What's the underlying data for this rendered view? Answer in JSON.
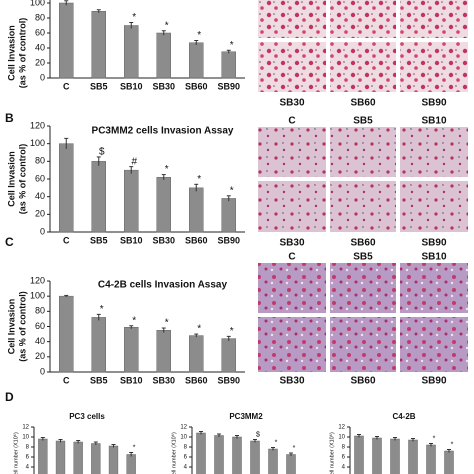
{
  "chart_data": [
    {
      "type": "bar",
      "categories": [
        "C",
        "SB5",
        "SB10",
        "SB30",
        "SB60",
        "SB90"
      ],
      "values": [
        100,
        89,
        70,
        60,
        47,
        35
      ],
      "errors": [
        3,
        2,
        4,
        3,
        3,
        2
      ],
      "bar_annotations": [
        null,
        null,
        "*",
        "*",
        "*",
        "*"
      ],
      "color": "#8c8c8c",
      "ylim": [
        0,
        120
      ],
      "yticks": [
        0,
        20,
        40,
        60,
        80,
        100
      ],
      "ylabel": [
        "Cell Invasion",
        "(as % of control)"
      ]
    },
    {
      "type": "bar",
      "title": "PC3MM2 cells Invasion Assay",
      "categories": [
        "C",
        "SB5",
        "SB10",
        "SB30",
        "SB60",
        "SB90"
      ],
      "values": [
        100,
        80,
        70,
        62,
        50,
        38
      ],
      "errors": [
        6,
        5,
        4,
        3,
        4,
        3
      ],
      "bar_annotations": [
        null,
        "$",
        "#",
        "*",
        "*",
        "*"
      ],
      "color": "#8c8c8c",
      "ylim": [
        0,
        120
      ],
      "yticks": [
        0,
        20,
        40,
        60,
        80,
        100,
        120
      ],
      "ylabel": [
        "Cell Invasion",
        "(as % of control)"
      ]
    },
    {
      "type": "bar",
      "title": "C4-2B cells Invasion Assay",
      "categories": [
        "C",
        "SB5",
        "SB10",
        "SB30",
        "SB60",
        "SB90"
      ],
      "values": [
        100,
        72,
        59,
        55,
        48,
        44
      ],
      "errors": [
        1,
        4,
        2,
        3,
        2,
        3
      ],
      "bar_annotations": [
        null,
        "*",
        "*",
        "*",
        "*",
        "*"
      ],
      "color": "#8c8c8c",
      "ylim": [
        0,
        120
      ],
      "yticks": [
        0,
        20,
        40,
        60,
        80,
        100,
        120
      ],
      "ylabel": [
        "Cell Invasion",
        "(as % of control)"
      ]
    },
    {
      "type": "bar",
      "title": "PC3 cells",
      "values": [
        9.6,
        9.2,
        9.0,
        8.7,
        8.2,
        6.5
      ],
      "errors": [
        0.3,
        0.3,
        0.3,
        0.3,
        0.3,
        0.4
      ],
      "bar_annotations": [
        null,
        null,
        null,
        null,
        null,
        "*"
      ],
      "color": "#8c8c8c",
      "ylim": [
        0,
        12
      ],
      "yticks": [
        0,
        2,
        4,
        6,
        8,
        10,
        12
      ],
      "ylabel": [
        "cell number (X10⁶)"
      ]
    },
    {
      "type": "bar",
      "title": "PC3MM2",
      "values": [
        10.8,
        10.3,
        10.0,
        9.2,
        7.6,
        6.5
      ],
      "errors": [
        0.3,
        0.3,
        0.3,
        0.3,
        0.3,
        0.3
      ],
      "bar_annotations": [
        null,
        null,
        null,
        "$",
        "*",
        "*"
      ],
      "color": "#8c8c8c",
      "ylim": [
        0,
        12
      ],
      "yticks": [
        0,
        2,
        4,
        6,
        8,
        10,
        12
      ],
      "ylabel": [
        "cell number (X10⁶)"
      ]
    },
    {
      "type": "bar",
      "title": "C4-2B",
      "values": [
        10.2,
        9.8,
        9.6,
        9.4,
        8.4,
        7.2
      ],
      "errors": [
        0.3,
        0.3,
        0.3,
        0.3,
        0.3,
        0.3
      ],
      "bar_annotations": [
        null,
        null,
        null,
        null,
        "*",
        "*"
      ],
      "color": "#8c8c8c",
      "ylim": [
        0,
        12
      ],
      "yticks": [
        0,
        2,
        4,
        6,
        8,
        10,
        12
      ],
      "ylabel": [
        "cell number (X10⁶)"
      ]
    }
  ],
  "figure": {
    "panel_labels": [
      "B",
      "C",
      "D"
    ],
    "micrographs": [
      {
        "labels_bottom": [
          "SB30",
          "SB60",
          "SB90"
        ]
      },
      {
        "labels_top": [
          "C",
          "SB5",
          "SB10"
        ],
        "labels_bottom": [
          "SB30",
          "SB60",
          "SB90"
        ]
      },
      {
        "labels_top": [
          "C",
          "SB5",
          "SB10"
        ],
        "labels_bottom": [
          "SB30",
          "SB60",
          "SB90"
        ]
      }
    ]
  }
}
